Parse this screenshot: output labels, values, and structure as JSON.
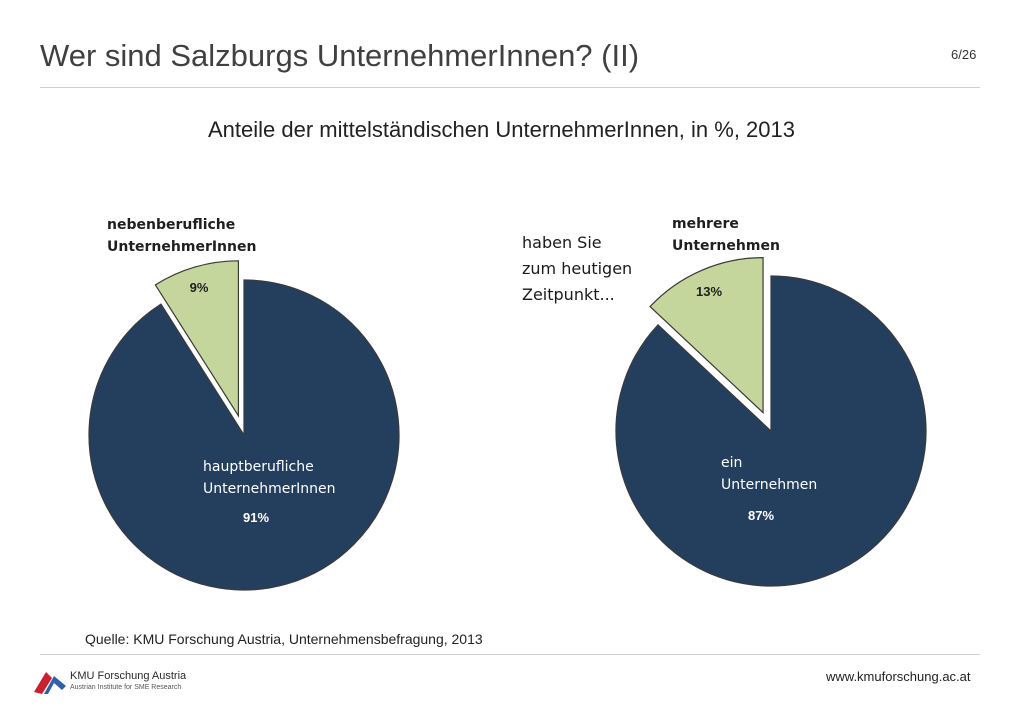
{
  "header": {
    "title": "Wer sind Salzburgs UnternehmerInnen? (II)",
    "page_number": "6/26"
  },
  "subtitle": "Anteile der mittelständischen UnternehmerInnen, in %, 2013",
  "question": {
    "lines": [
      "haben Sie",
      "zum heutigen",
      "Zeitpunkt..."
    ]
  },
  "footer": {
    "source": "Quelle: KMU Forschung Austria, Unternehmensbefragung, 2013",
    "website": "www.kmuforschung.ac.at",
    "logo_name": "KMU Forschung Austria",
    "logo_subtitle": "Austrian Institute for SME Research"
  },
  "colors": {
    "main_slice": "#243f5e",
    "exploded_slice": "#c4d69b",
    "slice_stroke": "#3a3a3a"
  },
  "chart_data": [
    {
      "type": "pie",
      "slices": [
        {
          "label": [
            "nebenberufliche",
            "UnternehmerInnen"
          ],
          "value": 9,
          "value_label": "9%",
          "exploded": true
        },
        {
          "label": [
            "hauptberufliche",
            "UnternehmerInnen"
          ],
          "value": 91,
          "value_label": "91%",
          "exploded": false
        }
      ]
    },
    {
      "type": "pie",
      "slices": [
        {
          "label": [
            "mehrere",
            "Unternehmen"
          ],
          "value": 13,
          "value_label": "13%",
          "exploded": true
        },
        {
          "label": [
            "ein",
            "Unternehmen"
          ],
          "value": 87,
          "value_label": "87%",
          "exploded": false
        }
      ]
    }
  ]
}
